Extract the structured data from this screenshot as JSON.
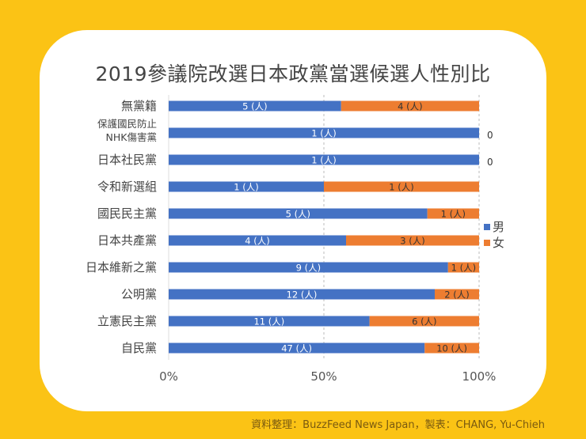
{
  "chart_data": {
    "type": "bar",
    "stacked": "percent",
    "orientation": "horizontal",
    "title": "2019參議院改選日本政黨當選候選人性別比",
    "categories": [
      "無黨籍",
      "保護國民防止\nNHK傷害黨",
      "日本社民黨",
      "令和新選組",
      "國民民主黨",
      "日本共產黨",
      "日本維新之黨",
      "公明黨",
      "立憲民主黨",
      "自民黨"
    ],
    "series": [
      {
        "name": "男",
        "color": "#4472c4",
        "values": [
          5,
          1,
          1,
          1,
          5,
          4,
          9,
          12,
          11,
          47
        ],
        "labels": [
          "5 (人)",
          "1 (人)",
          "1 (人)",
          "1 (人)",
          "5 (人)",
          "4 (人)",
          "9 (人)",
          "12 (人)",
          "11 (人)",
          "47 (人)"
        ]
      },
      {
        "name": "女",
        "color": "#ed7d31",
        "values": [
          4,
          0,
          0,
          1,
          1,
          3,
          1,
          2,
          6,
          10
        ],
        "labels": [
          "4 (人)",
          "0",
          "0",
          "1 (人)",
          "1 (人)",
          "3 (人)",
          "1 (人)",
          "2 (人)",
          "6 (人)",
          "10 (人)"
        ]
      }
    ],
    "xticks": [
      "0%",
      "50%",
      "100%"
    ],
    "xlim": [
      0,
      100
    ],
    "grid": "vertical dashed",
    "legend": "right"
  },
  "footer": "資料整理：BuzzFeed News Japan，製表：CHANG, Yu-Chieh"
}
